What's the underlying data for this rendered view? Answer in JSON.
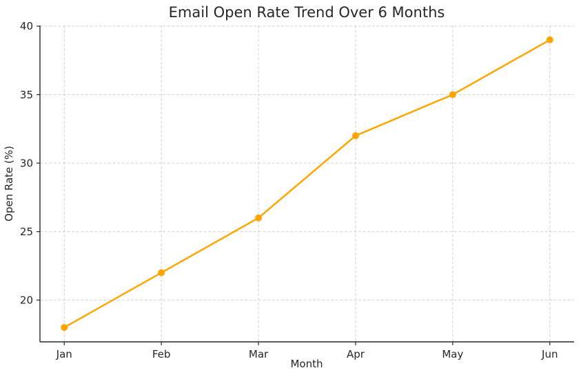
{
  "page": {
    "background": "#ffffff"
  },
  "chart_data": {
    "type": "line",
    "title": "Email Open Rate Trend Over 6 Months",
    "xlabel": "Month",
    "ylabel": "Open Rate (%)",
    "categories": [
      "Jan",
      "Feb",
      "Mar",
      "Apr",
      "May",
      "Jun"
    ],
    "series": [
      {
        "name": "Open Rate",
        "values": [
          18,
          22,
          26,
          32,
          35,
          39
        ],
        "color": "#FFA500",
        "marker": "circle",
        "line_width": 2.5,
        "marker_radius": 5
      }
    ],
    "yticks": [
      20,
      25,
      30,
      35,
      40
    ],
    "ylim": [
      16.95,
      40.05
    ],
    "xlim": [
      -0.25,
      5.25
    ],
    "grid": "on",
    "grid_line_style": "dashed",
    "legend": "none",
    "colors": {
      "grid": "#d0d0d0",
      "axis": "#262626",
      "text": "#262626"
    }
  }
}
